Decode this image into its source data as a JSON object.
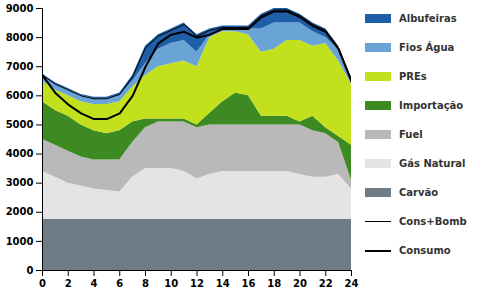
{
  "chart_data": {
    "type": "area",
    "stacked": true,
    "legend": "right",
    "grid": false,
    "x": [
      0,
      1,
      2,
      3,
      4,
      5,
      6,
      7,
      8,
      9,
      10,
      11,
      12,
      13,
      14,
      15,
      16,
      17,
      18,
      19,
      20,
      21,
      22,
      23,
      24
    ],
    "xlim": [
      0,
      24
    ],
    "xticks": [
      0,
      2,
      4,
      6,
      8,
      10,
      12,
      14,
      16,
      18,
      20,
      22,
      24
    ],
    "ylim": [
      0,
      9000
    ],
    "yticks": [
      0,
      1000,
      2000,
      3000,
      4000,
      5000,
      6000,
      7000,
      8000,
      9000
    ],
    "series": [
      {
        "name": "Albufeiras",
        "type": "area",
        "color": "#1f5fa8",
        "values": [
          50,
          50,
          50,
          50,
          50,
          50,
          100,
          200,
          600,
          500,
          500,
          600,
          600,
          200,
          100,
          100,
          100,
          500,
          500,
          500,
          300,
          300,
          300,
          100,
          100
        ]
      },
      {
        "name": "Fios Água",
        "type": "area",
        "color": "#6aa3d5",
        "values": [
          200,
          200,
          200,
          200,
          200,
          200,
          200,
          200,
          400,
          600,
          700,
          700,
          500,
          100,
          100,
          100,
          200,
          800,
          900,
          600,
          600,
          500,
          200,
          400,
          100
        ]
      },
      {
        "name": "PREs",
        "type": "area",
        "color": "#c3e01c",
        "values": [
          700,
          700,
          700,
          800,
          900,
          1000,
          1000,
          1200,
          1500,
          1800,
          1900,
          2000,
          2000,
          2600,
          2400,
          2100,
          2100,
          2200,
          2300,
          2600,
          2800,
          2400,
          2900,
          2600,
          2100
        ]
      },
      {
        "name": "Importação",
        "type": "area",
        "color": "#3e8a22",
        "values": [
          1300,
          1200,
          1200,
          1100,
          1000,
          900,
          1000,
          700,
          300,
          100,
          100,
          100,
          100,
          400,
          800,
          1100,
          1000,
          300,
          300,
          300,
          100,
          500,
          200,
          200,
          1200
        ]
      },
      {
        "name": "Fuel",
        "type": "area",
        "color": "#b9b9b9",
        "values": [
          1100,
          1100,
          1100,
          1000,
          1000,
          1050,
          1100,
          1200,
          1400,
          1600,
          1600,
          1700,
          1750,
          1700,
          1600,
          1600,
          1600,
          1600,
          1600,
          1600,
          1700,
          1600,
          1500,
          1100,
          300
        ]
      },
      {
        "name": "Gás Natural",
        "type": "area",
        "color": "#e4e4e4",
        "values": [
          1650,
          1450,
          1250,
          1150,
          1050,
          1000,
          950,
          1450,
          1750,
          1750,
          1750,
          1650,
          1400,
          1550,
          1650,
          1650,
          1650,
          1650,
          1650,
          1650,
          1550,
          1450,
          1450,
          1550,
          1050
        ]
      },
      {
        "name": "Carvão",
        "type": "area",
        "color": "#6f7c86",
        "values": [
          1750,
          1750,
          1750,
          1750,
          1750,
          1750,
          1750,
          1750,
          1750,
          1750,
          1750,
          1750,
          1750,
          1750,
          1750,
          1750,
          1750,
          1750,
          1750,
          1750,
          1750,
          1750,
          1750,
          1750,
          1750
        ]
      },
      {
        "name": "Cons+Bomb",
        "type": "line",
        "line_style": "thin",
        "color": "#000000",
        "values": [
          6700,
          6400,
          6200,
          6000,
          5900,
          5900,
          6050,
          6650,
          7650,
          8050,
          8250,
          8450,
          8050,
          8250,
          8350,
          8350,
          8350,
          8750,
          8950,
          8950,
          8750,
          8450,
          8250,
          7650,
          6550
        ]
      },
      {
        "name": "Consumo",
        "type": "line",
        "line_style": "thick",
        "color": "#000000",
        "values": [
          6700,
          6100,
          5700,
          5400,
          5200,
          5200,
          5400,
          6000,
          7000,
          7800,
          8100,
          8200,
          8000,
          8100,
          8300,
          8300,
          8300,
          8700,
          8900,
          8900,
          8700,
          8400,
          8200,
          7600,
          6500
        ]
      }
    ]
  }
}
